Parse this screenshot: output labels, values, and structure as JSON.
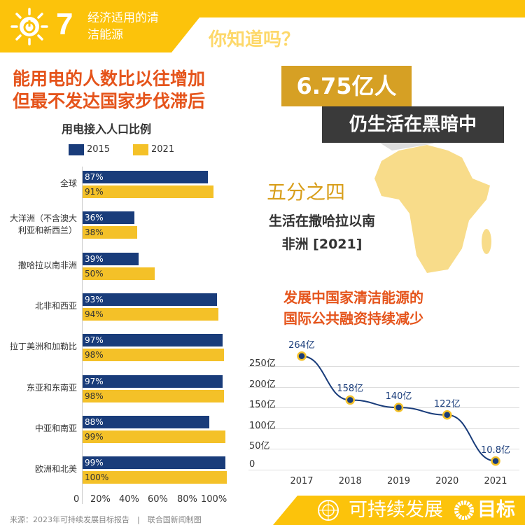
{
  "header": {
    "goal_number": "7",
    "goal_name": "经济适用的清洁能源",
    "did_you_know": "你知道吗？"
  },
  "headline": {
    "line1": "能用电的人数比以往增加",
    "line2": "但最不发达国家步伐滞后"
  },
  "bar_chart_title": "用电接入人口比例",
  "chart_data": [
    {
      "type": "bar",
      "orientation": "horizontal",
      "title": "用电接入人口比例",
      "categories": [
        "全球",
        "大洋洲（不含澳大利亚和新西兰）",
        "撒哈拉以南非洲",
        "北非和西亚",
        "拉丁美洲和加勒比",
        "东亚和东南亚",
        "中亚和南亚",
        "欧洲和北美"
      ],
      "series": [
        {
          "name": "2015",
          "values": [
            87,
            36,
            39,
            93,
            97,
            97,
            88,
            99
          ],
          "color": "#193c7a"
        },
        {
          "name": "2021",
          "values": [
            91,
            38,
            50,
            94,
            98,
            98,
            99,
            100
          ],
          "color": "#f4c128"
        }
      ],
      "xticks": [
        "0",
        "20%",
        "40%",
        "60%",
        "80%",
        "100%"
      ],
      "xlim": [
        0,
        100
      ],
      "legend": "top"
    },
    {
      "type": "line",
      "title": "发展中国家清洁能源的国际公共融资持续减少",
      "x": [
        "2017",
        "2018",
        "2019",
        "2020",
        "2021"
      ],
      "values": [
        264,
        158,
        140,
        122,
        10.8
      ],
      "data_labels": [
        "264亿",
        "158亿",
        "140亿",
        "122亿",
        "10.8亿"
      ],
      "yticks": [
        "0",
        "50亿",
        "100亿",
        "150亿",
        "200亿",
        "250亿"
      ],
      "ylim": [
        0,
        250
      ],
      "grid": true,
      "color": "#193c7a"
    }
  ],
  "bar_categories_display": [
    "全球",
    "大洋洲（不含澳大\n利亚和新西兰）",
    "撒哈拉以南非洲",
    "北非和西亚",
    "拉丁美洲和加勒比",
    "东亚和东南亚",
    "中亚和南亚",
    "欧洲和北美"
  ],
  "fact": {
    "number": "6.75亿人",
    "text": "仍生活在黑暗中",
    "fraction": "五分之四",
    "fraction_desc1": "生活在撒哈拉以南",
    "fraction_desc2": "非洲 [2021]"
  },
  "line_title": {
    "line1": "发展中国家清洁能源的",
    "line2": "国际公共融资持续减少"
  },
  "footer": {
    "source": "来源：2023年可持续发展目标报告　|　联合国新闻制图",
    "sdg_text": "可持续发展",
    "sdg_text2": "目标"
  }
}
